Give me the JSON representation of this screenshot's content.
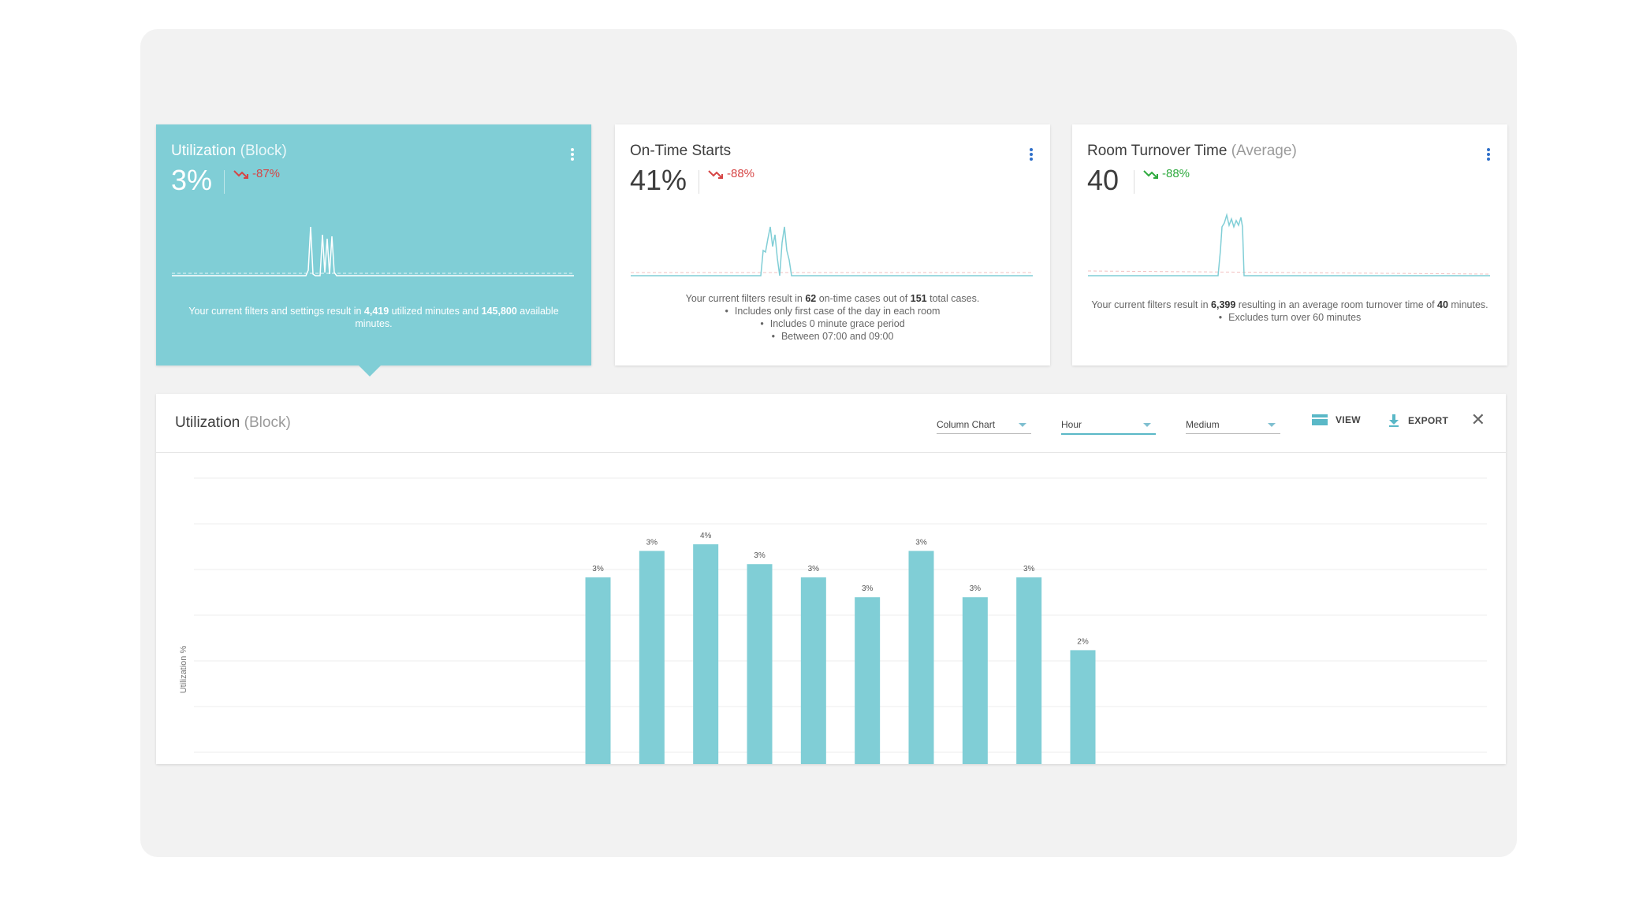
{
  "cards": [
    {
      "title": "Utilization",
      "title_sub": "(Block)",
      "value": "3%",
      "delta": "-87%",
      "delta_dir": "down",
      "text": {
        "p1": "Your current filters and settings result in ",
        "b1": "4,419",
        "p2": " utilized minutes and ",
        "b2": "145,800",
        "p3": " available minutes."
      }
    },
    {
      "title": "On-Time Starts",
      "title_sub": "",
      "value": "41%",
      "delta": "-88%",
      "delta_dir": "down",
      "text": {
        "p1": "Your current filters result in ",
        "b1": "62",
        "p2": " on-time cases out of ",
        "b2": "151",
        "p3": " total cases.",
        "bullets": [
          "Includes only first case of the day in each room",
          "Includes 0 minute grace period",
          "Between 07:00 and 09:00"
        ]
      }
    },
    {
      "title": "Room Turnover Time",
      "title_sub": "(Average)",
      "value": "40",
      "delta": "-88%",
      "delta_dir": "down",
      "text": {
        "p1": "Your current filters result in ",
        "b1": "6,399",
        "p2": " resulting in an average room turnover time of ",
        "b2": "40",
        "p3": " minutes.",
        "bullets": [
          "Excludes turn over 60 minutes"
        ]
      }
    }
  ],
  "panel": {
    "title": "Utilization",
    "title_sub": "(Block)",
    "chart_type_select": "Column Chart",
    "interval_select": "Hour",
    "size_select": "Medium",
    "view_label": "VIEW",
    "export_label": "EXPORT"
  },
  "colors": {
    "accent": "#80ced6",
    "negative": "#d64545",
    "positive": "#2eaa3e",
    "link": "#2f6fc9"
  },
  "chart_data": {
    "type": "bar",
    "ylabel": "Utilization %",
    "grid": true,
    "series": [
      {
        "values": [
          3.0,
          3.4,
          3.5,
          3.2,
          3.0,
          2.7,
          3.4,
          2.7,
          3.0,
          1.9
        ],
        "labels": [
          "3%",
          "3%",
          "4%",
          "3%",
          "3%",
          "3%",
          "3%",
          "3%",
          "3%",
          "2%"
        ]
      }
    ],
    "category_slots": 24,
    "first_bar_slot": 7,
    "ylim": [
      0,
      4.5
    ]
  }
}
